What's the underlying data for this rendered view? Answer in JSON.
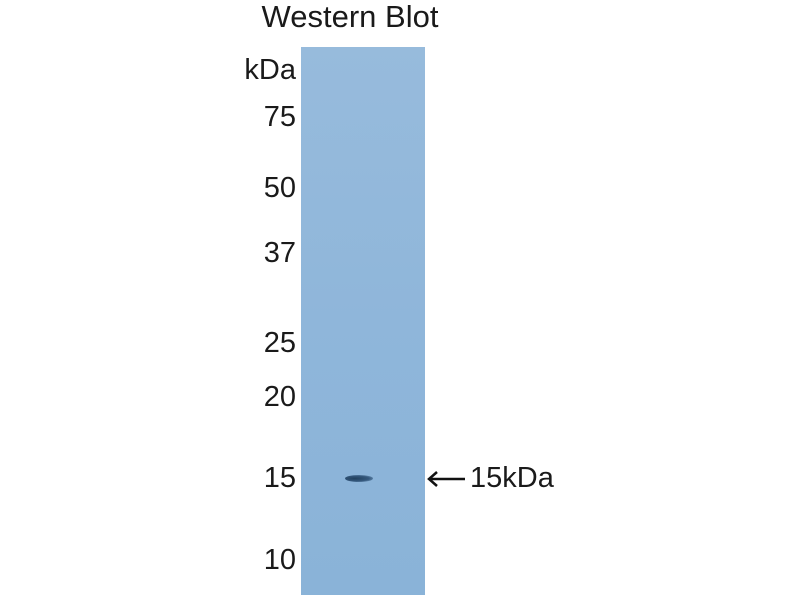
{
  "title": "Western Blot",
  "unit_label": "kDa",
  "markers": [
    "75",
    "50",
    "37",
    "25",
    "20",
    "15",
    "10"
  ],
  "band_annotation": "15kDa",
  "colors": {
    "membrane": "#92b8db",
    "band": "#2b4a6c",
    "text": "#1a1a1a"
  }
}
